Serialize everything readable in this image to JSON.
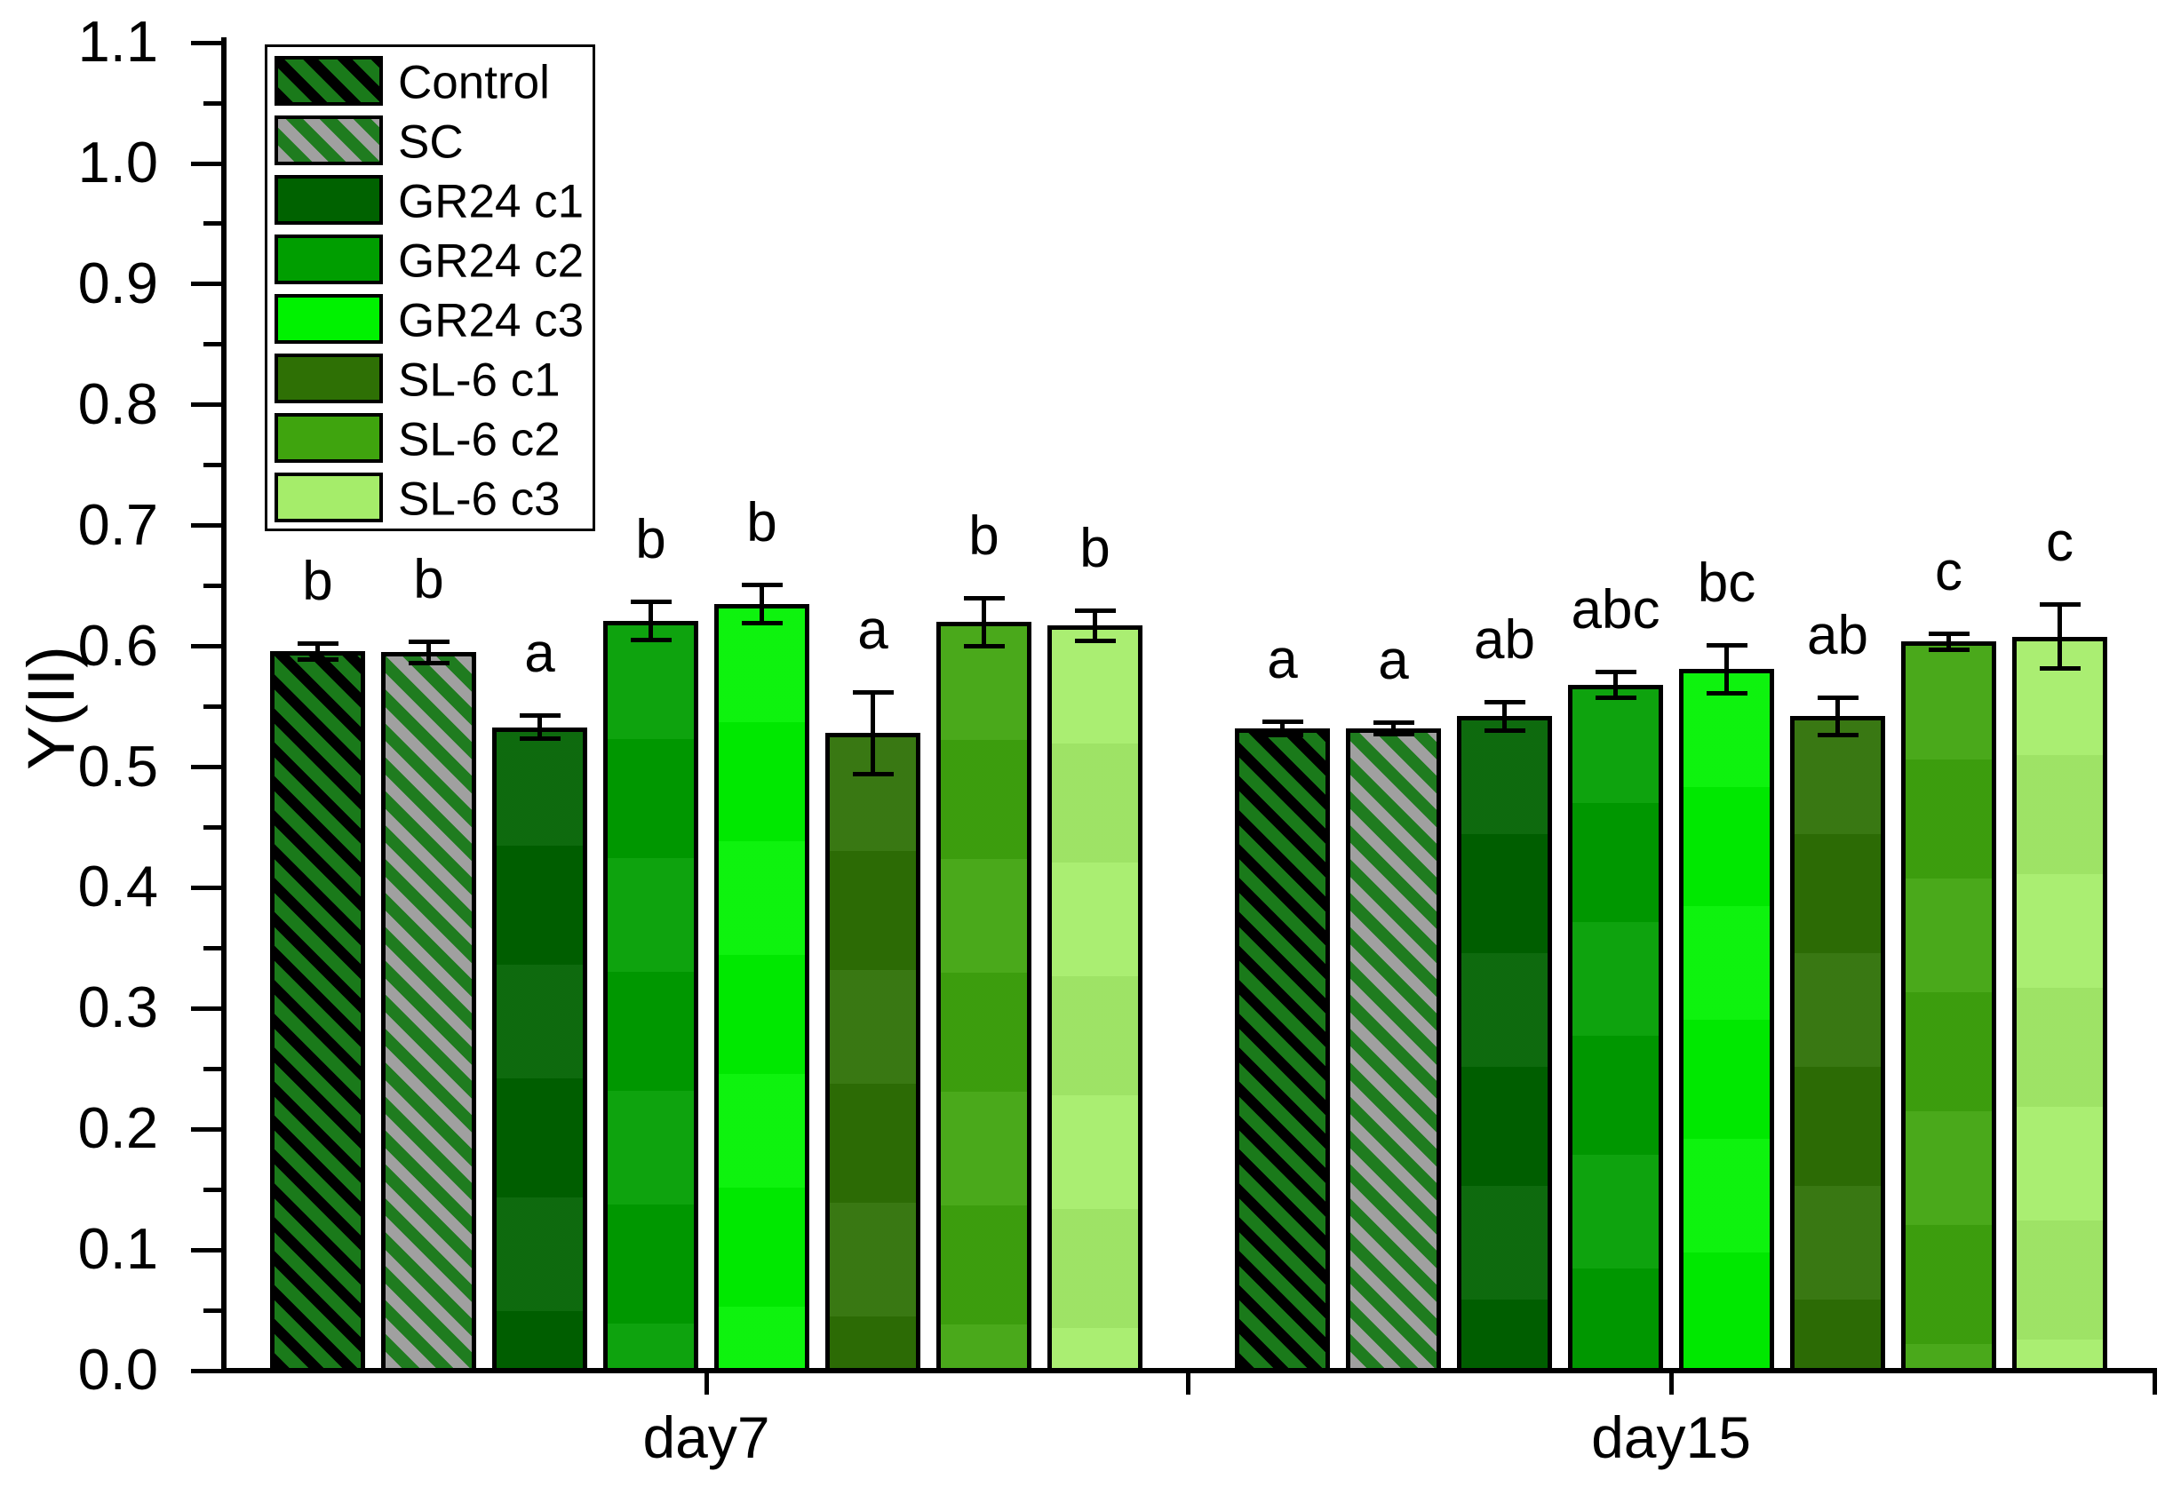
{
  "chart_data": {
    "type": "bar",
    "title": "",
    "ylabel": "Y(II)",
    "xlabel": "",
    "ylim": [
      0.0,
      1.1
    ],
    "y_major_step": 0.1,
    "y_minor_step": 0.05,
    "y_tick_labels": [
      "0.0",
      "0.1",
      "0.2",
      "0.3",
      "0.4",
      "0.5",
      "0.6",
      "0.7",
      "0.8",
      "0.9",
      "1.0",
      "1.1"
    ],
    "grid": false,
    "legend_position": "top-left",
    "background": "#ffffff",
    "axis_color": "#000000",
    "error_bar_color": "#000000",
    "categories": [
      "day7",
      "day15"
    ],
    "series": [
      {
        "name": "Control",
        "fill": "#1a7a1a",
        "hatch": "black-diagonal",
        "hatch_color": "#000000",
        "values": [
          0.596,
          0.532
        ],
        "errors": [
          0.007,
          0.006
        ],
        "sig_letters": [
          "b",
          "a"
        ]
      },
      {
        "name": "SC",
        "fill": "#1f7c1f",
        "hatch": "gray-diagonal",
        "hatch_color": "#a0a0a0",
        "values": [
          0.595,
          0.532
        ],
        "errors": [
          0.009,
          0.005
        ],
        "sig_letters": [
          "b",
          "a"
        ]
      },
      {
        "name": "GR24 c1",
        "fill": "#006200",
        "hatch": null,
        "hatch_color": null,
        "values": [
          0.533,
          0.542
        ],
        "errors": [
          0.01,
          0.012
        ],
        "sig_letters": [
          "a",
          "ab"
        ]
      },
      {
        "name": "GR24 c2",
        "fill": "#009e00",
        "hatch": null,
        "hatch_color": null,
        "values": [
          0.621,
          0.568
        ],
        "errors": [
          0.016,
          0.011
        ],
        "sig_letters": [
          "b",
          "abc"
        ]
      },
      {
        "name": "GR24 c3",
        "fill": "#00f200",
        "hatch": null,
        "hatch_color": null,
        "values": [
          0.635,
          0.581
        ],
        "errors": [
          0.016,
          0.02
        ],
        "sig_letters": [
          "b",
          "bc"
        ]
      },
      {
        "name": "SL-6 c1",
        "fill": "#2e7005",
        "hatch": null,
        "hatch_color": null,
        "values": [
          0.528,
          0.542
        ],
        "errors": [
          0.034,
          0.016
        ],
        "sig_letters": [
          "a",
          "ab"
        ]
      },
      {
        "name": "SL-6 c2",
        "fill": "#3fa40e",
        "hatch": null,
        "hatch_color": null,
        "values": [
          0.62,
          0.604
        ],
        "errors": [
          0.02,
          0.007
        ],
        "sig_letters": [
          "b",
          "c"
        ]
      },
      {
        "name": "SL-6 c3",
        "fill": "#a5ed6a",
        "hatch": null,
        "hatch_color": null,
        "values": [
          0.617,
          0.608
        ],
        "errors": [
          0.013,
          0.027
        ],
        "sig_letters": [
          "b",
          "c"
        ]
      }
    ]
  }
}
